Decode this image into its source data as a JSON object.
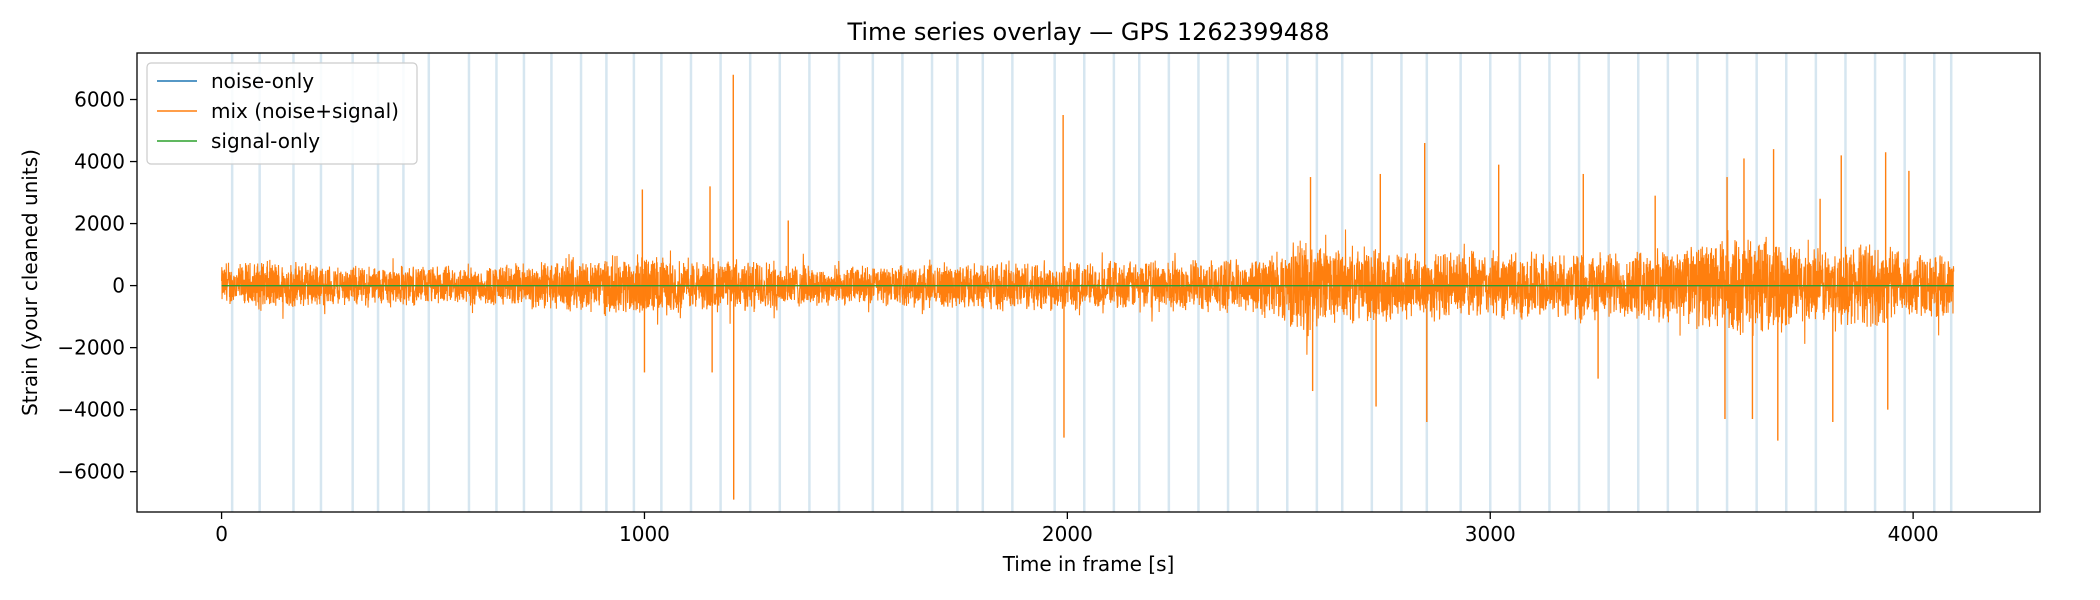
{
  "chart_data": {
    "type": "line",
    "title": "Time series overlay — GPS 1262399488",
    "xlabel": "Time in frame [s]",
    "ylabel": "Strain (your cleaned units)",
    "xlim": [
      -200,
      4300
    ],
    "ylim": [
      -7300,
      7500
    ],
    "xticks": [
      0,
      1000,
      2000,
      3000,
      4000
    ],
    "xtick_labels": [
      "0",
      "1000",
      "2000",
      "3000",
      "4000"
    ],
    "yticks": [
      -6000,
      -4000,
      -2000,
      0,
      2000,
      4000,
      6000
    ],
    "ytick_labels": [
      "−6000",
      "−4000",
      "−2000",
      "0",
      "2000",
      "4000",
      "6000"
    ],
    "grid": false,
    "legend_position": "upper-left",
    "segment_markers_x": [
      25,
      90,
      170,
      235,
      310,
      370,
      430,
      490,
      585,
      650,
      715,
      780,
      850,
      910,
      975,
      1040,
      1110,
      1180,
      1250,
      1320,
      1390,
      1460,
      1540,
      1610,
      1680,
      1740,
      1800,
      1870,
      1970,
      2040,
      2110,
      2170,
      2240,
      2310,
      2380,
      2450,
      2520,
      2590,
      2650,
      2720,
      2790,
      2850,
      2930,
      3000,
      3070,
      3140,
      3210,
      3280,
      3350,
      3420,
      3490,
      3560,
      3630,
      3700,
      3770,
      3840,
      3910,
      3980,
      4050,
      4090
    ],
    "series": [
      {
        "name": "noise-only",
        "color": "#1f77b4",
        "x": [
          0,
          4096
        ],
        "y": [
          0,
          0
        ]
      },
      {
        "name": "mix (noise+signal)",
        "color": "#ff7f0e",
        "x_range": [
          0,
          4096
        ],
        "envelope_x": [
          0,
          100,
          200,
          300,
          400,
          500,
          600,
          700,
          800,
          900,
          1000,
          1100,
          1200,
          1300,
          1400,
          1500,
          1600,
          1700,
          1800,
          1900,
          2000,
          2100,
          2200,
          2300,
          2400,
          2500,
          2560,
          2600,
          2700,
          2800,
          2900,
          3000,
          3100,
          3200,
          3300,
          3400,
          3500,
          3600,
          3700,
          3800,
          3900,
          4000,
          4096
        ],
        "envelope_amp": [
          700,
          900,
          800,
          700,
          750,
          700,
          700,
          800,
          900,
          1000,
          1100,
          900,
          900,
          900,
          700,
          700,
          700,
          800,
          800,
          900,
          900,
          800,
          900,
          900,
          900,
          1200,
          1800,
          1400,
          1300,
          1300,
          1200,
          1200,
          1200,
          1200,
          1200,
          1300,
          1500,
          1800,
          1500,
          1300,
          1500,
          1200,
          1000
        ],
        "spikes": [
          {
            "x": 995,
            "y": 3100
          },
          {
            "x": 1000,
            "y": -2800
          },
          {
            "x": 1155,
            "y": 3200
          },
          {
            "x": 1160,
            "y": -2800
          },
          {
            "x": 1210,
            "y": 6800
          },
          {
            "x": 1211,
            "y": -6900
          },
          {
            "x": 1340,
            "y": 2100
          },
          {
            "x": 1990,
            "y": 5500
          },
          {
            "x": 1992,
            "y": -4900
          },
          {
            "x": 2575,
            "y": 3500
          },
          {
            "x": 2580,
            "y": -3400
          },
          {
            "x": 2730,
            "y": -3900
          },
          {
            "x": 2740,
            "y": 3600
          },
          {
            "x": 2845,
            "y": 4600
          },
          {
            "x": 2850,
            "y": -4400
          },
          {
            "x": 3020,
            "y": 3900
          },
          {
            "x": 3220,
            "y": 3600
          },
          {
            "x": 3255,
            "y": -3000
          },
          {
            "x": 3390,
            "y": 2900
          },
          {
            "x": 3560,
            "y": 3500
          },
          {
            "x": 3555,
            "y": -4300
          },
          {
            "x": 3600,
            "y": 4100
          },
          {
            "x": 3620,
            "y": -4300
          },
          {
            "x": 3670,
            "y": 4400
          },
          {
            "x": 3680,
            "y": -5000
          },
          {
            "x": 3780,
            "y": 2800
          },
          {
            "x": 3810,
            "y": -4400
          },
          {
            "x": 3830,
            "y": 4200
          },
          {
            "x": 3935,
            "y": 4300
          },
          {
            "x": 3940,
            "y": -4000
          },
          {
            "x": 3990,
            "y": 3700
          }
        ]
      },
      {
        "name": "signal-only",
        "color": "#2ca02c",
        "x": [
          0,
          4096
        ],
        "y": [
          0,
          0
        ]
      }
    ]
  }
}
